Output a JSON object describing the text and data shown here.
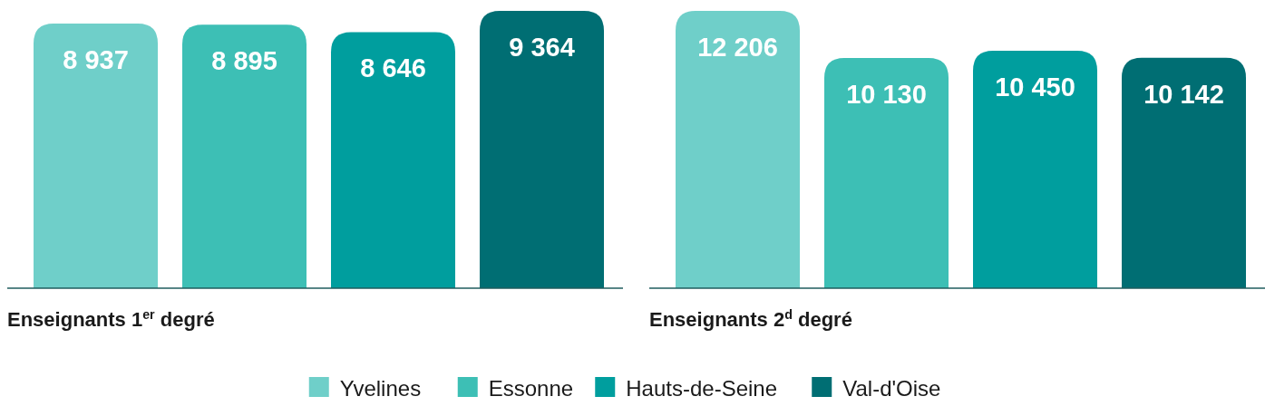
{
  "chart_data": [
    {
      "type": "bar",
      "categories": [
        null
      ],
      "xlabel": "Enseignants 1$^{er}$ degré",
      "legend": "bottom",
      "series": [
        {
          "name": "Yvelines",
          "color": "#6fcfc9",
          "values": [
            8937
          ],
          "value_labels": [
            "8 937"
          ]
        },
        {
          "name": "Essonne",
          "color": "#3dbfb5",
          "values": [
            8895
          ],
          "value_labels": [
            "8 895"
          ]
        },
        {
          "name": "Hauts-de-Seine",
          "color": "#009e9e",
          "values": [
            8646
          ],
          "value_labels": [
            "8 646"
          ]
        },
        {
          "name": "Val-d'Oise",
          "color": "#006e73",
          "values": [
            9364
          ],
          "value_labels": [
            "9 364"
          ]
        }
      ]
    },
    {
      "type": "bar",
      "categories": [
        null
      ],
      "xlabel": "Enseignants 2$^{d}$ degré",
      "series": [
        {
          "color": "#6fcfc9",
          "values": [
            12206
          ],
          "value_labels": [
            "12 206"
          ]
        },
        {
          "color": "#3dbfb5",
          "values": [
            10130
          ],
          "value_labels": [
            "10 130"
          ]
        },
        {
          "color": "#009e9e",
          "values": [
            10450
          ],
          "value_labels": [
            "10 450"
          ]
        },
        {
          "color": "#006e73",
          "values": [
            10142
          ],
          "value_labels": [
            "10 142"
          ]
        }
      ]
    }
  ]
}
